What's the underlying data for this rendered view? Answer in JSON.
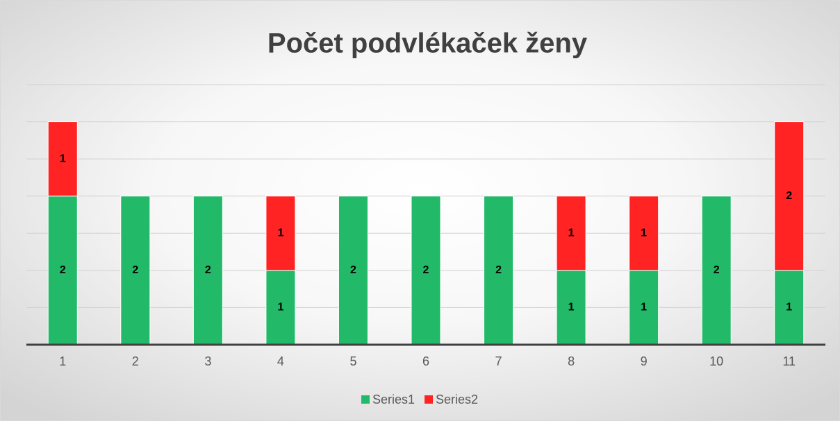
{
  "chart_data": {
    "type": "stacked_bar",
    "title": "Počet podvlékaček ženy",
    "categories": [
      "1",
      "2",
      "3",
      "4",
      "5",
      "6",
      "7",
      "8",
      "9",
      "10",
      "11"
    ],
    "series": [
      {
        "name": "Series1",
        "color": "#22b968",
        "values": [
          2,
          2,
          2,
          1,
          2,
          2,
          2,
          1,
          1,
          2,
          1
        ]
      },
      {
        "name": "Series2",
        "color": "#ff2323",
        "values": [
          1,
          null,
          null,
          1,
          null,
          null,
          null,
          1,
          1,
          null,
          2
        ]
      }
    ],
    "ylim": [
      0,
      3.5
    ],
    "yticks": [
      0,
      0.5,
      1,
      1.5,
      2,
      2.5,
      3,
      3.5
    ],
    "grid": true,
    "legend": "bottom"
  }
}
